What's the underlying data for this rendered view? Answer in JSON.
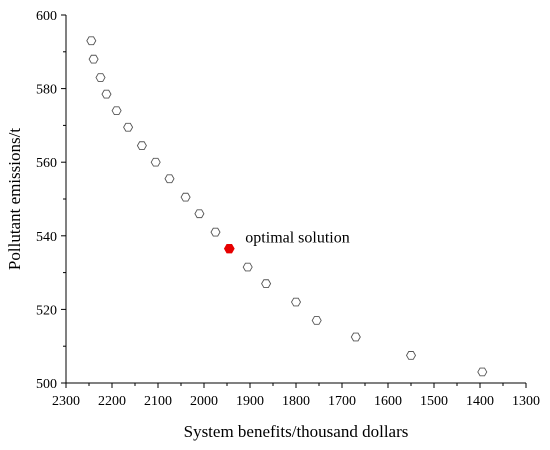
{
  "chart_data": {
    "type": "scatter",
    "title": "",
    "xlabel": "System benefits/thousand dollars",
    "ylabel": "Pollutant emissions/t",
    "xlim": [
      2300,
      1300
    ],
    "ylim": [
      500,
      600
    ],
    "x_reversed": true,
    "x_ticks": [
      2300,
      2200,
      2100,
      2000,
      1900,
      1800,
      1700,
      1600,
      1500,
      1400,
      1300
    ],
    "y_ticks": [
      500,
      520,
      540,
      560,
      580,
      600
    ],
    "grid": false,
    "marker": "hexagon-outline",
    "series": [
      {
        "points": [
          [
            2245,
            593
          ],
          [
            2240,
            588
          ],
          [
            2225,
            583
          ],
          [
            2212,
            578.5
          ],
          [
            2190,
            574
          ],
          [
            2165,
            569.5
          ],
          [
            2135,
            564.5
          ],
          [
            2105,
            560
          ],
          [
            2075,
            555.5
          ],
          [
            2040,
            550.5
          ],
          [
            2010,
            546
          ],
          [
            1975,
            541
          ],
          [
            1905,
            531.5
          ],
          [
            1865,
            527
          ],
          [
            1800,
            522
          ],
          [
            1755,
            517
          ],
          [
            1670,
            512.5
          ],
          [
            1550,
            507.5
          ],
          [
            1395,
            503
          ]
        ]
      }
    ],
    "highlight": {
      "label": "optimal solution",
      "point": [
        1945,
        536.5
      ],
      "color": "#e60000"
    },
    "colors": {
      "axis": "#000000",
      "marker_stroke": "#555555",
      "highlight": "#e60000"
    }
  }
}
